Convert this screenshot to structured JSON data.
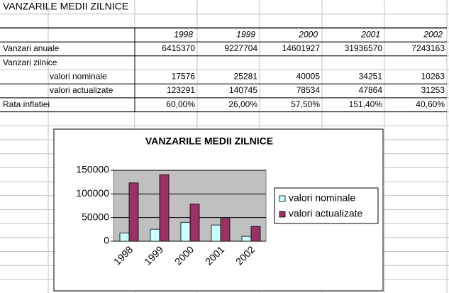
{
  "sheet": {
    "title": "VANZARILE MEDII ZILNICE",
    "header": [
      "1998",
      "1999",
      "2000",
      "2001",
      "2002"
    ],
    "rows": [
      {
        "label": "Vanzari anuale",
        "cells": [
          "6415370",
          "9227704",
          "14601927",
          "31936570",
          "7243163"
        ]
      },
      {
        "label": "Vanzari zilnice"
      },
      {
        "label": "valori nominale",
        "cells": [
          "17576",
          "25281",
          "40005",
          "34251",
          "10263"
        ]
      },
      {
        "label": "valori actualizate",
        "cells": [
          "123291",
          "140745",
          "78534",
          "47864",
          "31253"
        ]
      },
      {
        "label": "Rata inflatiei",
        "cells": [
          "60,00%",
          "26,00%",
          "57,50%",
          "151,40%",
          "40,60%"
        ]
      }
    ]
  },
  "chart_data": {
    "type": "bar",
    "title": "VANZARILE MEDII ZILNICE",
    "categories": [
      "1998",
      "1999",
      "2000",
      "2001",
      "2002"
    ],
    "series": [
      {
        "name": "valori nominale",
        "color": "#ccffff",
        "values": [
          17576,
          25281,
          40005,
          34251,
          10263
        ]
      },
      {
        "name": "valori actualizate",
        "color": "#993366",
        "values": [
          123291,
          140745,
          78534,
          47864,
          31253
        ]
      }
    ],
    "ylim": [
      0,
      150000
    ],
    "yticks": [
      0,
      50000,
      100000,
      150000
    ],
    "grid": true,
    "legend": "right"
  }
}
